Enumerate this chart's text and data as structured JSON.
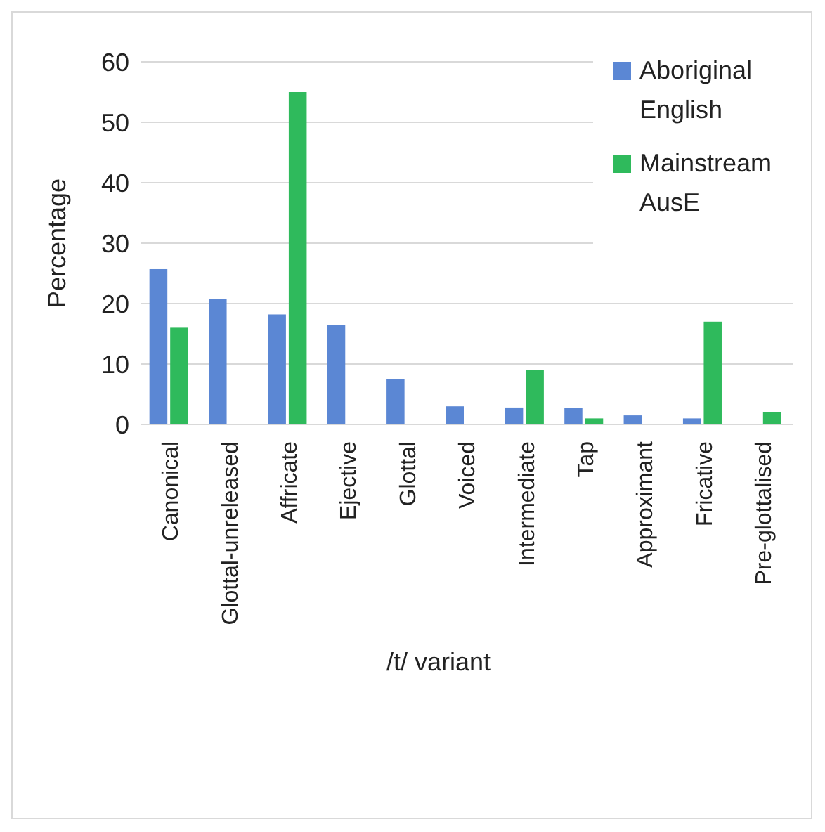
{
  "chart_data": {
    "type": "bar",
    "xlabel": "/t/ variant",
    "ylabel": "Percentage",
    "categories": [
      "Canonical",
      "Glottal-unreleased",
      "Affricate",
      "Ejective",
      "Glottal",
      "Voiced",
      "Intermediate",
      "Tap",
      "Approximant",
      "Fricative",
      "Pre-glottalised"
    ],
    "series": [
      {
        "name": "Aboriginal English",
        "color": "#5b87d4",
        "values": [
          25.7,
          20.8,
          18.2,
          16.5,
          7.5,
          3,
          2.8,
          2.7,
          1.5,
          1,
          null
        ]
      },
      {
        "name": "Mainstream AusE",
        "color": "#2fba5c",
        "values": [
          16,
          null,
          55,
          null,
          null,
          null,
          9,
          1,
          null,
          17,
          2
        ]
      }
    ],
    "ylim": [
      0,
      60
    ],
    "yticks": [
      0,
      10,
      20,
      30,
      40,
      50,
      60
    ],
    "grid": "y",
    "legend": "top right"
  }
}
